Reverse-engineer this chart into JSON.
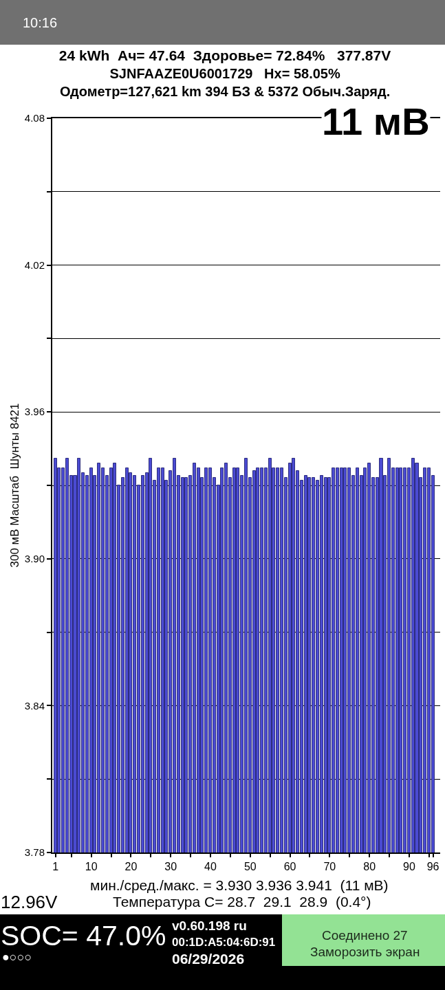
{
  "chart_data": {
    "type": "bar",
    "title": "24 kWh  Ач= 47.64  Здоровье= 72.84%   377.87V",
    "subtitle": "SJNFAAZE0U6001729   Hx= 58.05%\nОдометр=127,621 km 394 БЗ & 5372 Обыч.Заряд.",
    "ylabel": "300 мВ Масштаб  Шунты 8421",
    "annotations": [
      "11 мВ",
      "мин./сред./макс. = 3.930 3.936 3.941  (11 мВ)",
      "Температура С= 28.7  29.1  28.9  (0.4°)",
      "12.96V",
      "SOC= 47.0%",
      "●○○○",
      "v0.60.198 ru",
      "00:1D:A5:04:6D:91",
      "06/29/2026",
      "Соединено 27",
      "Заморозить экран",
      "10:16"
    ],
    "x": [
      1,
      2,
      3,
      4,
      5,
      6,
      7,
      8,
      9,
      10,
      11,
      12,
      13,
      14,
      15,
      16,
      17,
      18,
      19,
      20,
      21,
      22,
      23,
      24,
      25,
      26,
      27,
      28,
      29,
      30,
      31,
      32,
      33,
      34,
      35,
      36,
      37,
      38,
      39,
      40,
      41,
      42,
      43,
      44,
      45,
      46,
      47,
      48,
      49,
      50,
      51,
      52,
      53,
      54,
      55,
      56,
      57,
      58,
      59,
      60,
      61,
      62,
      63,
      64,
      65,
      66,
      67,
      68,
      69,
      70,
      71,
      72,
      73,
      74,
      75,
      76,
      77,
      78,
      79,
      80,
      81,
      82,
      83,
      84,
      85,
      86,
      87,
      88,
      89,
      90,
      91,
      92,
      93,
      94,
      95,
      96
    ],
    "values": [
      3.941,
      3.937,
      3.937,
      3.941,
      3.934,
      3.934,
      3.941,
      3.935,
      3.934,
      3.937,
      3.934,
      3.939,
      3.937,
      3.934,
      3.937,
      3.939,
      3.93,
      3.933,
      3.937,
      3.935,
      3.934,
      3.93,
      3.934,
      3.935,
      3.941,
      3.932,
      3.937,
      3.937,
      3.932,
      3.936,
      3.941,
      3.934,
      3.933,
      3.933,
      3.934,
      3.939,
      3.937,
      3.933,
      3.937,
      3.937,
      3.933,
      3.93,
      3.937,
      3.939,
      3.933,
      3.937,
      3.937,
      3.934,
      3.941,
      3.933,
      3.936,
      3.937,
      3.937,
      3.937,
      3.941,
      3.937,
      3.937,
      3.937,
      3.933,
      3.939,
      3.941,
      3.936,
      3.932,
      3.934,
      3.933,
      3.933,
      3.932,
      3.934,
      3.933,
      3.933,
      3.937,
      3.937,
      3.937,
      3.937,
      3.937,
      3.934,
      3.937,
      3.934,
      3.937,
      3.939,
      3.933,
      3.933,
      3.941,
      3.934,
      3.941,
      3.937,
      3.937,
      3.937,
      3.937,
      3.937,
      3.941,
      3.939,
      3.933,
      3.937,
      3.937,
      3.934
    ],
    "color": "#4b4bd2",
    "xlim": [
      0.2,
      97.8
    ],
    "xticks": [
      1,
      {
        "value": 5,
        "label": null
      },
      10,
      {
        "value": 15,
        "label": null
      },
      20,
      {
        "value": 25,
        "label": null
      },
      30,
      {
        "value": 35,
        "label": null
      },
      40,
      {
        "value": 45,
        "label": null
      },
      50,
      {
        "value": 55,
        "label": null
      },
      60,
      {
        "value": 65,
        "label": null
      },
      70,
      {
        "value": 75,
        "label": null
      },
      80,
      {
        "value": 85,
        "label": null
      },
      90,
      {
        "value": 95,
        "label": null
      },
      96
    ],
    "ylim": [
      3.78,
      4.08
    ],
    "yticks": [
      3.78,
      {
        "value": 3.81,
        "label": null
      },
      3.84,
      {
        "value": 3.87,
        "label": null
      },
      {
        "value": 3.9,
        "label": "3.90"
      },
      {
        "value": 3.93,
        "label": null
      },
      3.96,
      {
        "value": 3.99,
        "label": null
      },
      4.02,
      {
        "value": 4.05,
        "label": null
      },
      4.08
    ],
    "grid": "y"
  }
}
